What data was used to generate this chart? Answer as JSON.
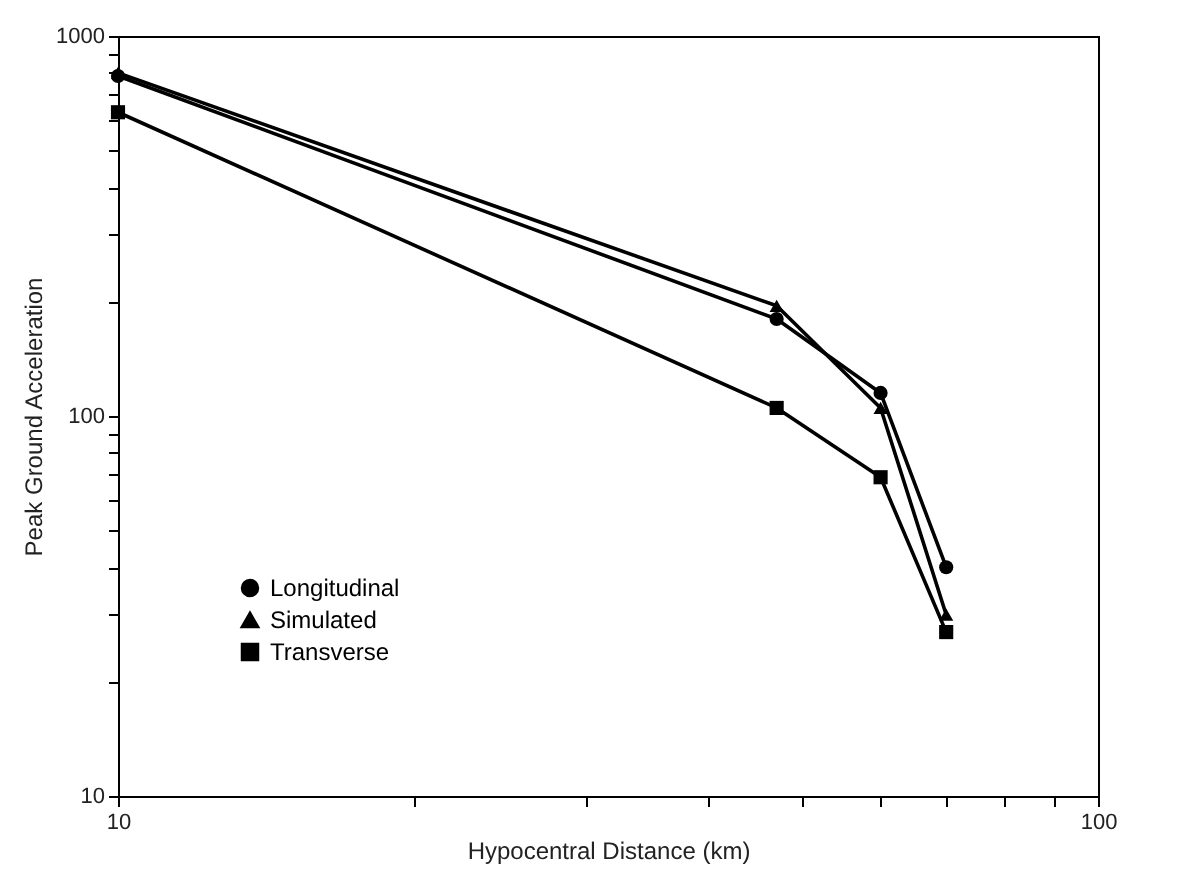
{
  "chart_data": {
    "type": "line",
    "xlabel": "Hypocentral Distance (km)",
    "ylabel": "Peak Ground Acceleration",
    "log": "xy",
    "grid": false,
    "legend": "bottom left",
    "x": [
      10,
      47,
      60,
      70
    ],
    "xlim": [
      10,
      100
    ],
    "xticks": [
      10,
      {
        "value": 20,
        "label": null
      },
      {
        "value": 30,
        "label": null
      },
      {
        "value": 40,
        "label": null
      },
      {
        "value": 50,
        "label": null
      },
      {
        "value": 60,
        "label": null
      },
      {
        "value": 70,
        "label": null
      },
      {
        "value": 80,
        "label": null
      },
      {
        "value": 90,
        "label": null
      },
      100
    ],
    "ylim": [
      10,
      1000
    ],
    "yticks": [
      10,
      {
        "value": 20,
        "label": null
      },
      {
        "value": 30,
        "label": null
      },
      {
        "value": 40,
        "label": null
      },
      {
        "value": 50,
        "label": null
      },
      {
        "value": 60,
        "label": null
      },
      {
        "value": 70,
        "label": null
      },
      {
        "value": 80,
        "label": null
      },
      {
        "value": 90,
        "label": null
      },
      100,
      {
        "value": 200,
        "label": null
      },
      {
        "value": 300,
        "label": null
      },
      {
        "value": 400,
        "label": null
      },
      {
        "value": 500,
        "label": null
      },
      {
        "value": 600,
        "label": null
      },
      {
        "value": 700,
        "label": null
      },
      {
        "value": 800,
        "label": null
      },
      {
        "value": 900,
        "label": null
      },
      1000
    ],
    "series": [
      {
        "name": "Longitudinal",
        "color": "#000000",
        "marker": "circle",
        "values": [
          785,
          180,
          115,
          40
        ]
      },
      {
        "name": "Simulated",
        "color": "#000000",
        "marker": "triangle",
        "values": [
          800,
          195,
          105,
          30
        ]
      },
      {
        "name": "Transverse",
        "color": "#000000",
        "marker": "square",
        "values": [
          630,
          105,
          69,
          27
        ]
      }
    ]
  }
}
